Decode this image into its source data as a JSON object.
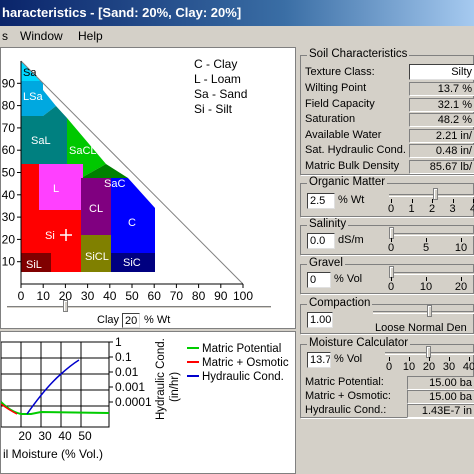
{
  "window": {
    "title": "haracteristics - [Sand: 20%, Clay: 20%]"
  },
  "menu": {
    "items": [
      "s",
      "Window",
      "Help"
    ]
  },
  "triangle": {
    "legend": [
      "C - Clay",
      "L - Loam",
      "Sa - Sand",
      "Si - Silt"
    ],
    "region_labels": [
      "Sa",
      "LSa",
      "SaL",
      "SaCL",
      "SaC",
      "L",
      "CL",
      "C",
      "Si",
      "SiCL",
      "SiC",
      "SiL"
    ],
    "left_axis_ticks": [
      "90",
      "80",
      "70",
      "60",
      "50",
      "40",
      "30",
      "20",
      "10"
    ],
    "bottom_axis_ticks": [
      "0",
      "10",
      "20",
      "30",
      "40",
      "50",
      "60",
      "70",
      "80",
      "90",
      "100"
    ],
    "clay_label": "Clay",
    "clay_value": "20",
    "clay_unit": "% Wt"
  },
  "moisture_chart": {
    "xlabel": "il Moisture (% Vol.)",
    "x_ticks": [
      "20",
      "30",
      "40",
      "50"
    ],
    "right_ticks": [
      "1",
      "0.1",
      "0.01",
      "0.001",
      "0.0001"
    ],
    "right_axis_label_1": "Hydraulic Cond.",
    "right_axis_label_2": "(in/hr)",
    "legend": [
      {
        "label": "Matric Potential",
        "color": "#00cc00"
      },
      {
        "label": "Matric + Osmotic",
        "color": "#ff0000"
      },
      {
        "label": "Hydraulic Cond.",
        "color": "#0000cc"
      }
    ]
  },
  "soil_characteristics": {
    "title": "Soil Characteristics",
    "texture_label": "Texture Class:",
    "texture_value": "Silty",
    "rows": [
      {
        "label": "Wilting Point",
        "value": "13.7 %"
      },
      {
        "label": "Field Capacity",
        "value": "32.1 %"
      },
      {
        "label": "Saturation",
        "value": "48.2 %"
      },
      {
        "label": "Available Water",
        "value": "2.21 in/"
      },
      {
        "label": "Sat. Hydraulic Cond.",
        "value": "0.48 in/"
      },
      {
        "label": "Matric Bulk Density",
        "value": "85.67 lb/"
      }
    ]
  },
  "organic_matter": {
    "title": "Organic Matter",
    "value": "2.5",
    "unit": "% Wt",
    "ticks": [
      "0",
      "1",
      "2",
      "3",
      "4"
    ]
  },
  "salinity": {
    "title": "Salinity",
    "value": "0.0",
    "unit": "dS/m",
    "ticks": [
      "0",
      "5",
      "10"
    ]
  },
  "gravel": {
    "title": "Gravel",
    "value": "0",
    "unit": "% Vol",
    "ticks": [
      "0",
      "10",
      "20"
    ]
  },
  "compaction": {
    "title": "Compaction",
    "value": "1.00",
    "scale_label": "Loose Normal Den"
  },
  "moisture_calculator": {
    "title": "Moisture Calculator",
    "value": "13.7",
    "unit": "% Vol",
    "ticks": [
      "0",
      "10",
      "20",
      "30",
      "40"
    ],
    "rows": [
      {
        "label": "Matric Potential:",
        "value": "15.00 ba"
      },
      {
        "label": "Matric + Osmotic:",
        "value": "15.00 ba"
      },
      {
        "label": "Hydraulic Cond.:",
        "value": "1.43E-7 in"
      }
    ]
  },
  "colors": {
    "sand": "#00d8ff",
    "loamy_sand": "#00a8e0",
    "sandy_loam": "#008080",
    "sandy_clay_loam": "#00c800",
    "sandy_clay": "#008000",
    "loam": "#ff40ff",
    "clay_loam": "#800080",
    "clay": "#0000ff",
    "silt_loam": "#ff0000",
    "silty_clay_loam": "#808000",
    "silty_clay": "#000080",
    "silt": "#800000"
  }
}
